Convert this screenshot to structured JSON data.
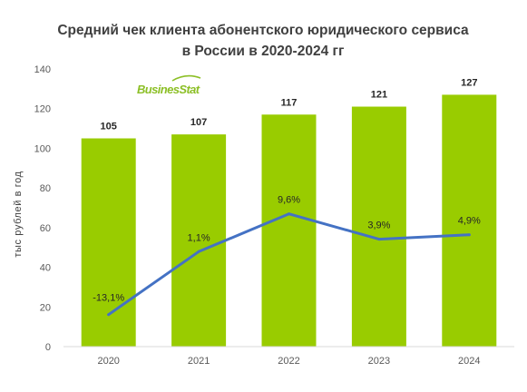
{
  "chart_data": {
    "type": "bar",
    "title_line1": "Средний чек клиента абонентского юридического сервиса",
    "title_line2": "в России в 2020-2024 гг",
    "ylabel": "тыс рублей в год",
    "xlabel": "",
    "ylim": [
      0,
      140
    ],
    "yticks": [
      0,
      20,
      40,
      60,
      80,
      100,
      120,
      140
    ],
    "categories": [
      "2020",
      "2021",
      "2022",
      "2023",
      "2024"
    ],
    "values": [
      105,
      107,
      117,
      121,
      127
    ],
    "value_labels": [
      "105",
      "107",
      "117",
      "121",
      "127"
    ],
    "growth": {
      "type": "line",
      "values": [
        -13.1,
        1.1,
        9.6,
        3.9,
        4.9
      ],
      "labels": [
        "-13,1%",
        "1,1%",
        "9,6%",
        "3,9%",
        "4,9%"
      ]
    },
    "grid": false,
    "logo_text": "BusinesStat",
    "colors": {
      "bar": "#99cc00",
      "line": "#4472c4",
      "title": "#404040",
      "axis_text": "#595959",
      "value_label": "#262626",
      "logo": "#8cbf26"
    }
  }
}
